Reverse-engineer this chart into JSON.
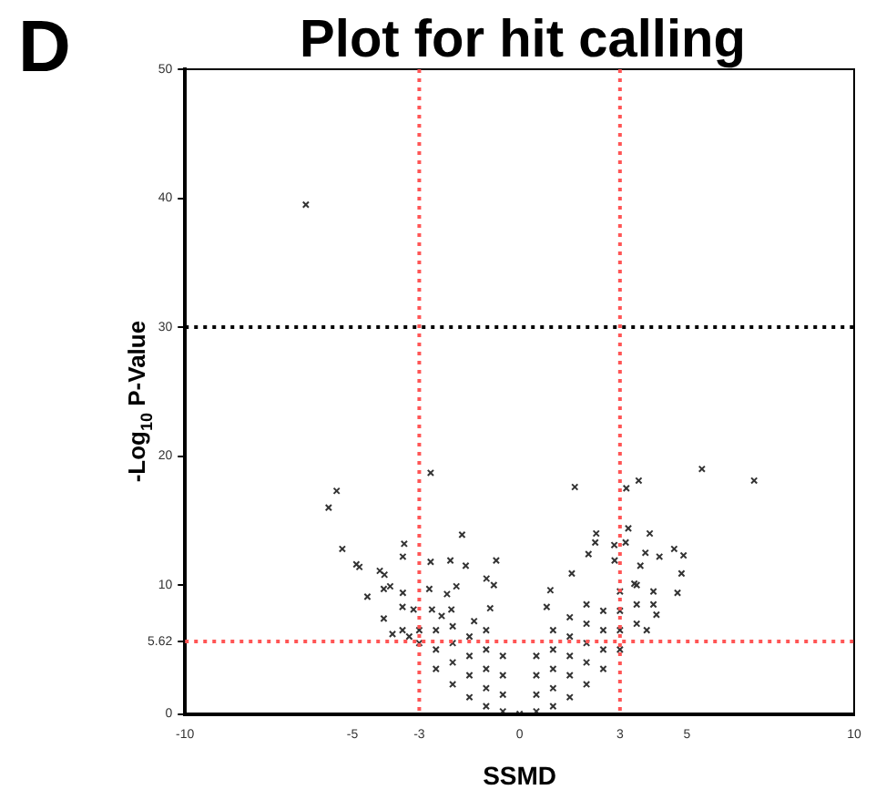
{
  "chart_data": {
    "type": "scatter",
    "title": "Plot for hit calling",
    "xlabel": "SSMD",
    "ylabel": "-Log$_{10}$ P-Value",
    "annotations": [
      "D"
    ],
    "marker": "cross",
    "grid": false,
    "legend": false,
    "xlim": [
      -10,
      10
    ],
    "xticks": [
      -10,
      -5,
      -3,
      0,
      3,
      5,
      10
    ],
    "ylim": [
      0,
      50
    ],
    "yticks": [
      0,
      5.62,
      10,
      20,
      30,
      40,
      50
    ],
    "ref_lines": [
      {
        "axis": "x",
        "value": -3,
        "color": "#ff5555",
        "line_style": "dotted"
      },
      {
        "axis": "x",
        "value": 3,
        "color": "#ff5555",
        "line_style": "dotted"
      },
      {
        "axis": "y",
        "value": 5.62,
        "color": "#ff5555",
        "line_style": "dotted"
      },
      {
        "axis": "y",
        "value": 30,
        "color": "#000000",
        "line_style": "dotted"
      }
    ],
    "series": [
      {
        "color": "#333333",
        "x": [
          -6.39,
          -5.71,
          -5.47,
          -2.66,
          1.65,
          3.19,
          3.56,
          5.45,
          7.01,
          -5.3,
          -4.88,
          -4.79,
          -4.18,
          -4.04,
          -4.55,
          -4.06,
          -4.06,
          -3.87,
          -3.45,
          -3.49,
          -3.49,
          -3.5,
          -3.17,
          -2.66,
          -2.7,
          -2.62,
          -1.72,
          -2.07,
          -1.61,
          -1.89,
          -2.17,
          -2.33,
          -0.7,
          -0.99,
          -0.77,
          -0.88,
          -1.36,
          -2.04,
          2.29,
          2.26,
          2.06,
          2.83,
          3.25,
          3.17,
          3.89,
          3.76,
          4.18,
          4.62,
          4.9,
          4.84,
          4.72,
          4.09,
          1.56,
          0.92,
          0.81,
          2.84,
          3.43,
          3.61,
          -3.8,
          -3.5,
          -3.3,
          -3,
          -3,
          -2.5,
          -2.5,
          -2.5,
          -2,
          -2,
          -2,
          -2,
          -1.5,
          -1.5,
          -1.5,
          -1.5,
          -1,
          -1,
          -1,
          -1,
          -1,
          -0.5,
          -0.5,
          -0.5,
          -0.5,
          0,
          0.5,
          0.5,
          0.5,
          0.5,
          1,
          1,
          1,
          1,
          1,
          1.5,
          1.5,
          1.5,
          1.5,
          1.5,
          2,
          2,
          2,
          2,
          2,
          2.5,
          2.5,
          2.5,
          2.5,
          3,
          3,
          3,
          3,
          3.5,
          3.5,
          3.5,
          4,
          4,
          3.8
        ],
        "values": [
          39.5,
          16.0,
          17.3,
          18.7,
          17.6,
          17.5,
          18.1,
          19.0,
          18.1,
          12.8,
          11.6,
          11.4,
          11.1,
          10.8,
          9.1,
          7.4,
          9.7,
          9.9,
          13.2,
          12.2,
          9.4,
          8.3,
          8.1,
          11.8,
          9.7,
          8.1,
          13.9,
          11.9,
          11.5,
          9.9,
          9.3,
          7.6,
          11.9,
          10.5,
          10.0,
          8.2,
          7.2,
          8.1,
          14.0,
          13.3,
          12.4,
          13.1,
          14.4,
          13.3,
          14.0,
          12.5,
          12.2,
          12.8,
          12.3,
          10.9,
          9.4,
          7.7,
          10.9,
          9.6,
          8.3,
          11.9,
          10.1,
          11.5,
          6.2,
          6.5,
          6.0,
          5.5,
          6.5,
          3.5,
          5,
          6.5,
          2.3,
          4,
          5.5,
          6.8,
          1.3,
          3,
          4.5,
          6,
          0.6,
          2,
          3.5,
          5,
          6.5,
          0.2,
          1.5,
          3,
          4.5,
          0,
          0.2,
          1.5,
          3,
          4.5,
          0.6,
          2,
          3.5,
          5,
          6.5,
          1.3,
          3,
          4.5,
          6,
          7.5,
          2.3,
          4,
          5.5,
          7,
          8.5,
          3.5,
          5,
          6.5,
          8,
          5,
          6.5,
          8,
          9.5,
          7,
          8.5,
          10,
          8.5,
          9.5,
          6.5
        ]
      }
    ]
  }
}
